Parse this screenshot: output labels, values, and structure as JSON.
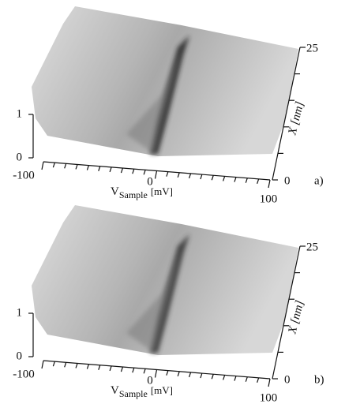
{
  "panels": [
    {
      "label": "a)",
      "z_axis_ticks": [
        0,
        1
      ],
      "v_axis_ticks": [
        -100,
        0,
        100
      ],
      "x_axis_ticks": [
        0,
        25
      ],
      "v_axis_label": "V",
      "v_axis_label_sub": "Sample",
      "v_axis_unit": "[mV]",
      "x_axis_label": "X [nm]"
    },
    {
      "label": "b)",
      "z_axis_ticks": [
        0,
        1
      ],
      "v_axis_ticks": [
        -100,
        0,
        100
      ],
      "x_axis_ticks": [
        0,
        25
      ],
      "v_axis_label": "V",
      "v_axis_label_sub": "Sample",
      "v_axis_unit": "[mV]",
      "x_axis_label": "X [nm]"
    }
  ]
}
